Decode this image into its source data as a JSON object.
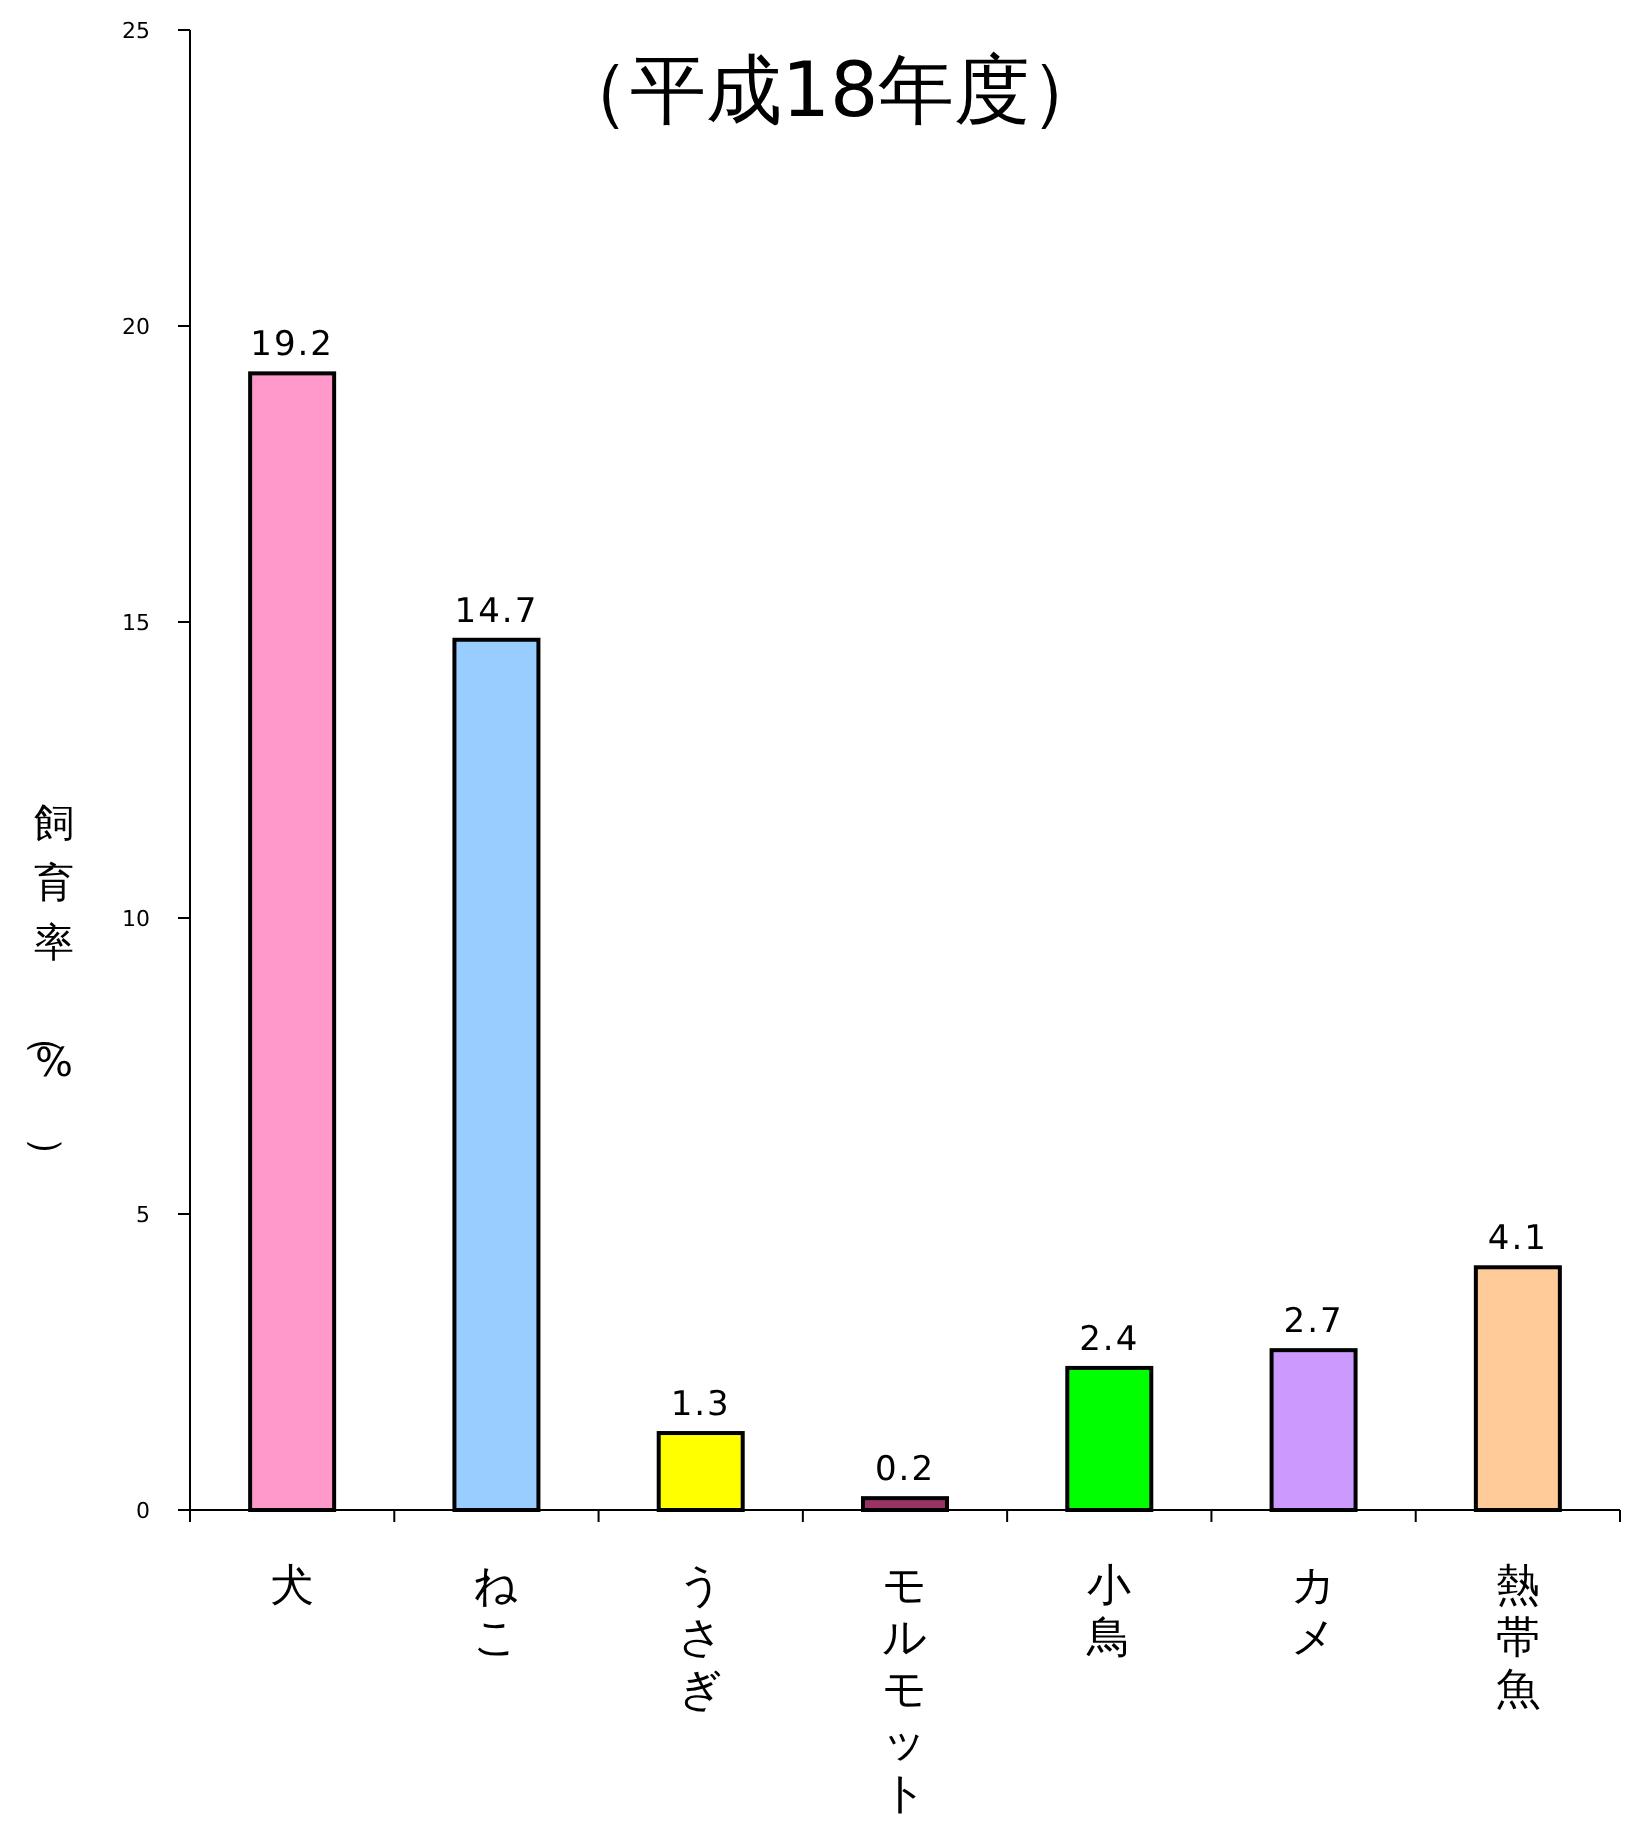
{
  "chart_data": {
    "type": "bar",
    "title": "（平成18年度）",
    "ylabel": "飼育率（%）",
    "categories": [
      "犬",
      "ねこ",
      "うさぎ",
      "モルモット",
      "小鳥",
      "カメ",
      "熱帯魚"
    ],
    "values": [
      19.2,
      14.7,
      1.3,
      0.2,
      2.4,
      2.7,
      4.1
    ],
    "colors": [
      "#ff99cc",
      "#99ccff",
      "#ffff00",
      "#993366",
      "#00ff00",
      "#cc99ff",
      "#ffcc99"
    ],
    "ylim": [
      0,
      25
    ],
    "yticks": [
      0,
      5,
      10,
      15,
      20,
      25
    ],
    "data_labels": true
  }
}
